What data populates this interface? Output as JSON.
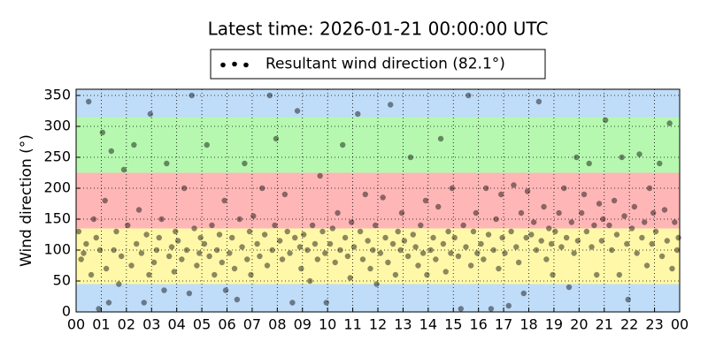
{
  "chart_data": {
    "type": "scatter",
    "title": "Latest time: 2026-01-21 00:00:00 UTC",
    "y_label": "Wind direction (°)",
    "xlim": [
      0,
      24
    ],
    "ylim": [
      0,
      360
    ],
    "xticks": [
      {
        "value": 0,
        "label": "00"
      },
      {
        "value": 1,
        "label": "01"
      },
      {
        "value": 2,
        "label": "02"
      },
      {
        "value": 3,
        "label": "03"
      },
      {
        "value": 4,
        "label": "04"
      },
      {
        "value": 5,
        "label": "05"
      },
      {
        "value": 6,
        "label": "06"
      },
      {
        "value": 7,
        "label": "07"
      },
      {
        "value": 8,
        "label": "08"
      },
      {
        "value": 9,
        "label": "09"
      },
      {
        "value": 10,
        "label": "10"
      },
      {
        "value": 11,
        "label": "11"
      },
      {
        "value": 12,
        "label": "12"
      },
      {
        "value": 13,
        "label": "13"
      },
      {
        "value": 14,
        "label": "14"
      },
      {
        "value": 15,
        "label": "15"
      },
      {
        "value": 16,
        "label": "16"
      },
      {
        "value": 17,
        "label": "17"
      },
      {
        "value": 18,
        "label": "18"
      },
      {
        "value": 19,
        "label": "19"
      },
      {
        "value": 20,
        "label": "20"
      },
      {
        "value": 21,
        "label": "21"
      },
      {
        "value": 22,
        "label": "22"
      },
      {
        "value": 23,
        "label": "23"
      },
      {
        "value": 24,
        "label": "00"
      }
    ],
    "yticks": [
      0,
      50,
      100,
      150,
      200,
      250,
      300,
      350
    ],
    "grid": true,
    "legend": "upper center",
    "alpha": 0.45,
    "bands": [
      {
        "from": 0,
        "to": 45,
        "color": "#bfdcf8"
      },
      {
        "from": 45,
        "to": 135,
        "color": "#fff8a8"
      },
      {
        "from": 135,
        "to": 225,
        "color": "#ffb6b6"
      },
      {
        "from": 225,
        "to": 315,
        "color": "#b6f8b0"
      },
      {
        "from": 315,
        "to": 360,
        "color": "#bfdcf8"
      }
    ],
    "series": [
      {
        "name": "Resultant wind direction (82.1°)",
        "color": "#000000",
        "x": [
          0.1,
          0.2,
          0.3,
          0.4,
          0.5,
          0.6,
          0.7,
          0.8,
          0.9,
          0.95,
          1.05,
          1.15,
          1.2,
          1.3,
          1.4,
          1.5,
          1.6,
          1.7,
          1.8,
          1.9,
          2.05,
          2.2,
          2.3,
          2.4,
          2.5,
          2.6,
          2.7,
          2.8,
          2.9,
          2.95,
          3.1,
          3.2,
          3.3,
          3.4,
          3.5,
          3.6,
          3.7,
          3.8,
          3.9,
          3.95,
          4.05,
          4.2,
          4.3,
          4.4,
          4.5,
          4.6,
          4.7,
          4.8,
          4.9,
          4.95,
          5.1,
          5.2,
          5.3,
          5.4,
          5.5,
          5.6,
          5.7,
          5.8,
          5.9,
          5.95,
          6.1,
          6.2,
          6.3,
          6.4,
          6.5,
          6.6,
          6.7,
          6.8,
          6.9,
          6.95,
          7.05,
          7.2,
          7.3,
          7.4,
          7.5,
          7.6,
          7.7,
          7.8,
          7.9,
          7.95,
          8.1,
          8.2,
          8.3,
          8.4,
          8.5,
          8.6,
          8.7,
          8.8,
          8.9,
          8.95,
          9.05,
          9.2,
          9.3,
          9.4,
          9.5,
          9.6,
          9.7,
          9.8,
          9.9,
          9.95,
          10.1,
          10.2,
          10.3,
          10.4,
          10.5,
          10.6,
          10.7,
          10.8,
          10.9,
          10.95,
          11.05,
          11.2,
          11.3,
          11.4,
          11.5,
          11.6,
          11.7,
          11.8,
          11.9,
          11.95,
          12.1,
          12.2,
          12.3,
          12.4,
          12.5,
          12.6,
          12.7,
          12.8,
          12.9,
          12.95,
          13.05,
          13.2,
          13.3,
          13.4,
          13.5,
          13.6,
          13.7,
          13.8,
          13.9,
          13.95,
          14.1,
          14.2,
          14.3,
          14.4,
          14.5,
          14.6,
          14.7,
          14.8,
          14.9,
          14.95,
          15.05,
          15.2,
          15.3,
          15.4,
          15.5,
          15.6,
          15.7,
          15.8,
          15.9,
          15.95,
          16.1,
          16.2,
          16.3,
          16.4,
          16.5,
          16.6,
          16.7,
          16.8,
          16.9,
          16.95,
          17.05,
          17.2,
          17.3,
          17.4,
          17.5,
          17.6,
          17.7,
          17.8,
          17.9,
          17.95,
          18.1,
          18.2,
          18.3,
          18.4,
          18.5,
          18.6,
          18.7,
          18.8,
          18.9,
          18.95,
          19.05,
          19.2,
          19.3,
          19.4,
          19.5,
          19.6,
          19.7,
          19.8,
          19.9,
          19.95,
          20.1,
          20.2,
          20.3,
          20.4,
          20.5,
          20.6,
          20.7,
          20.8,
          20.9,
          20.95,
          21.05,
          21.2,
          21.3,
          21.4,
          21.5,
          21.6,
          21.7,
          21.8,
          21.9,
          21.95,
          22.1,
          22.2,
          22.3,
          22.4,
          22.5,
          22.6,
          22.7,
          22.8,
          22.9,
          22.95,
          23.05,
          23.2,
          23.3,
          23.4,
          23.5,
          23.6,
          23.7,
          23.8,
          23.9,
          23.95
        ],
        "values": [
          130,
          85,
          95,
          110,
          340,
          60,
          150,
          120,
          5,
          100,
          290,
          180,
          70,
          15,
          260,
          100,
          130,
          45,
          90,
          230,
          140,
          75,
          270,
          110,
          165,
          95,
          15,
          125,
          60,
          320,
          80,
          100,
          120,
          150,
          35,
          240,
          90,
          105,
          65,
          130,
          115,
          85,
          200,
          100,
          30,
          350,
          135,
          75,
          95,
          120,
          110,
          270,
          90,
          140,
          60,
          100,
          125,
          80,
          180,
          35,
          95,
          120,
          70,
          20,
          150,
          105,
          240,
          85,
          130,
          60,
          155,
          110,
          90,
          200,
          125,
          75,
          350,
          100,
          140,
          280,
          115,
          85,
          190,
          130,
          95,
          15,
          120,
          325,
          105,
          70,
          125,
          100,
          50,
          140,
          110,
          85,
          220,
          130,
          95,
          15,
          110,
          135,
          80,
          160,
          100,
          270,
          120,
          90,
          55,
          145,
          105,
          320,
          130,
          85,
          190,
          115,
          70,
          100,
          140,
          45,
          95,
          185,
          120,
          80,
          335,
          110,
          60,
          130,
          100,
          160,
          115,
          90,
          250,
          125,
          105,
          75,
          140,
          95,
          180,
          60,
          100,
          120,
          85,
          170,
          280,
          110,
          65,
          130,
          95,
          200,
          120,
          90,
          5,
          140,
          105,
          350,
          75,
          130,
          160,
          95,
          110,
          85,
          200,
          125,
          5,
          100,
          150,
          70,
          190,
          120,
          95,
          10,
          130,
          205,
          105,
          80,
          160,
          30,
          120,
          195,
          125,
          145,
          100,
          340,
          115,
          170,
          85,
          135,
          110,
          60,
          130,
          160,
          105,
          200,
          120,
          40,
          145,
          95,
          250,
          115,
          160,
          190,
          130,
          240,
          105,
          140,
          60,
          175,
          115,
          150,
          310,
          140,
          100,
          180,
          125,
          60,
          250,
          155,
          110,
          20,
          135,
          170,
          95,
          255,
          120,
          145,
          75,
          200,
          110,
          160,
          130,
          240,
          90,
          165,
          115,
          305,
          70,
          145,
          100,
          120
        ]
      }
    ]
  }
}
